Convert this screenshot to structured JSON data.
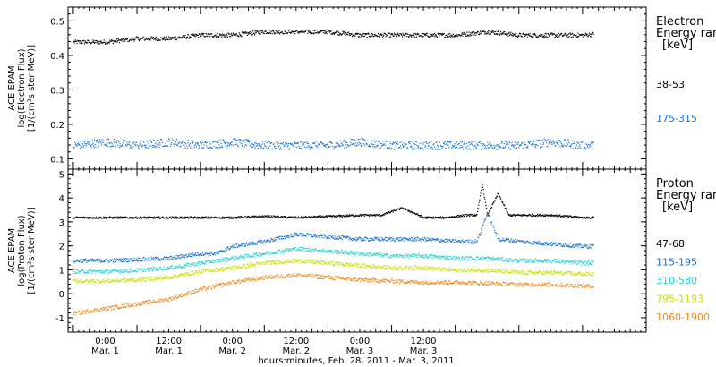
{
  "chart_data": [
    {
      "type": "scatter",
      "panel": "electron",
      "ylabel_lines": [
        "ACE EPAM",
        "log(Electron Flux)",
        "[1/(cm²s ster MeV)]"
      ],
      "ylim": [
        0.07,
        0.54
      ],
      "yticks": [
        0.1,
        0.2,
        0.3,
        0.4,
        0.5
      ],
      "ytick_labels": [
        "0.1",
        "0.2",
        "0.3",
        "0.4",
        "0.5"
      ],
      "legend_title": [
        "Electron",
        "Energy ran",
        "[keV]"
      ],
      "series": [
        {
          "name": "38-53",
          "color": "#000000",
          "x_hours": [
            0,
            6,
            12,
            18,
            24,
            30,
            36,
            42,
            48,
            54,
            60,
            66,
            72,
            78,
            84,
            90,
            96,
            102
          ],
          "values": [
            0.44,
            0.44,
            0.45,
            0.45,
            0.46,
            0.46,
            0.47,
            0.47,
            0.47,
            0.46,
            0.46,
            0.46,
            0.46,
            0.47,
            0.46,
            0.46,
            0.46,
            0.47
          ]
        },
        {
          "name": "175-315",
          "color": "#1874cd",
          "x_hours": [
            0,
            6,
            12,
            18,
            24,
            30,
            36,
            42,
            48,
            54,
            60,
            66,
            72,
            78,
            84,
            90,
            96,
            102
          ],
          "values": [
            0.14,
            0.15,
            0.14,
            0.15,
            0.14,
            0.15,
            0.14,
            0.14,
            0.14,
            0.15,
            0.14,
            0.14,
            0.14,
            0.14,
            0.14,
            0.15,
            0.14,
            0.14
          ]
        }
      ]
    },
    {
      "type": "scatter",
      "panel": "proton",
      "ylabel_lines": [
        "ACE EPAM",
        "log(Proton Flux)",
        "[1/(cm²s ster MeV)]"
      ],
      "ylim": [
        -1.6,
        5.2
      ],
      "yticks": [
        -1,
        0,
        1,
        2,
        3,
        4,
        5
      ],
      "ytick_labels": [
        "-1",
        "0",
        "1",
        "2",
        "3",
        "4",
        "5"
      ],
      "legend_title": [
        "Proton",
        "Energy ran",
        "[keV]"
      ],
      "series": [
        {
          "name": "47-68",
          "color": "#000000",
          "x_hours": [
            0,
            6,
            12,
            18,
            24,
            30,
            36,
            42,
            48,
            54,
            58,
            62,
            66,
            70,
            74,
            76,
            77,
            78,
            80,
            82,
            86,
            90,
            96,
            102
          ],
          "values": [
            3.2,
            3.2,
            3.2,
            3.2,
            3.2,
            3.2,
            3.25,
            3.2,
            3.25,
            3.3,
            3.3,
            3.6,
            3.2,
            3.2,
            3.3,
            3.3,
            4.6,
            3.3,
            4.2,
            3.3,
            3.3,
            3.3,
            3.2,
            3.2
          ]
        },
        {
          "name": "115-195",
          "color": "#1874cd",
          "x_hours": [
            0,
            6,
            12,
            18,
            24,
            27,
            30,
            36,
            42,
            48,
            54,
            60,
            66,
            72,
            76,
            78,
            80,
            84,
            90,
            96,
            102
          ],
          "values": [
            1.4,
            1.4,
            1.45,
            1.5,
            1.7,
            1.7,
            2.0,
            2.2,
            2.5,
            2.4,
            2.3,
            2.3,
            2.3,
            2.2,
            2.2,
            3.4,
            2.3,
            2.2,
            2.1,
            2.0,
            2.0
          ]
        },
        {
          "name": "310-580",
          "color": "#1fd3d3",
          "x_hours": [
            0,
            6,
            12,
            18,
            24,
            30,
            36,
            42,
            48,
            54,
            60,
            66,
            72,
            78,
            84,
            90,
            96,
            102
          ],
          "values": [
            0.95,
            0.95,
            1.0,
            1.1,
            1.3,
            1.5,
            1.7,
            1.9,
            1.8,
            1.7,
            1.6,
            1.6,
            1.5,
            1.5,
            1.4,
            1.4,
            1.3,
            1.3
          ]
        },
        {
          "name": "795-1193",
          "color": "#c8e000",
          "x_hours": [
            0,
            6,
            12,
            18,
            24,
            30,
            36,
            42,
            48,
            54,
            60,
            66,
            72,
            78,
            84,
            90,
            96,
            102
          ],
          "values": [
            0.55,
            0.55,
            0.6,
            0.7,
            0.95,
            1.1,
            1.3,
            1.4,
            1.3,
            1.2,
            1.1,
            1.1,
            1.0,
            1.0,
            0.9,
            0.9,
            0.85,
            0.8
          ]
        },
        {
          "name": "1060-1900",
          "color": "#ee8a1c",
          "x_hours": [
            0,
            6,
            12,
            18,
            24,
            30,
            36,
            42,
            48,
            54,
            60,
            66,
            72,
            78,
            84,
            90,
            96,
            102
          ],
          "values": [
            -0.8,
            -0.6,
            -0.4,
            -0.2,
            0.2,
            0.5,
            0.7,
            0.8,
            0.7,
            0.6,
            0.55,
            0.5,
            0.5,
            0.45,
            0.4,
            0.4,
            0.35,
            0.3
          ]
        }
      ]
    }
  ],
  "x_axis": {
    "major_tick_labels": [
      {
        "hours": 6,
        "time": "0:00",
        "date": "Mar. 1"
      },
      {
        "hours": 18,
        "time": "12:00",
        "date": "Mar. 1"
      },
      {
        "hours": 30,
        "time": "0:00",
        "date": "Mar. 2"
      },
      {
        "hours": 42,
        "time": "12:00",
        "date": "Mar. 2"
      },
      {
        "hours": 54,
        "time": "0:00",
        "date": "Mar. 3"
      },
      {
        "hours": 66,
        "time": "12:00",
        "date": "Mar. 3"
      }
    ],
    "xlabel": "hours:minutes, Feb. 28, 2011 - Mar.  3, 2011"
  }
}
